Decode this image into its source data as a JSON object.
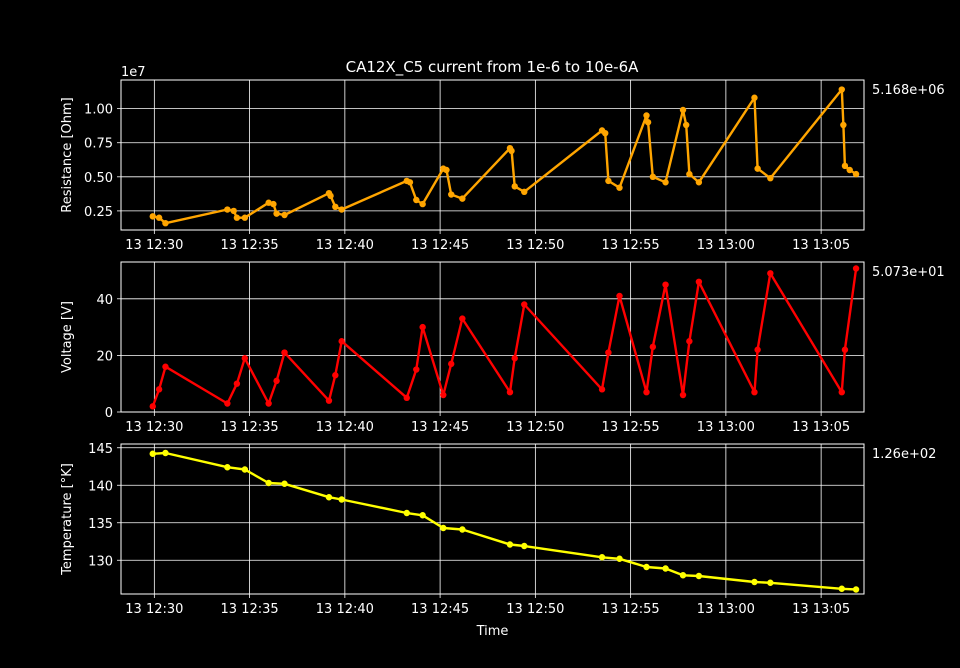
{
  "figure": {
    "title": "CA12X_C5 current from 1e-6 to 10e-6A",
    "background": "#000000",
    "foreground": "#ffffff",
    "grid": true
  },
  "chart_data": [
    {
      "type": "line",
      "ylabel": "Resistance [Ohm]",
      "scale_note": "1e7",
      "last_value": "5.168e+06",
      "color": "#ffa500",
      "xlabel": "",
      "x_ticks": [
        "13 12:30",
        "13 12:35",
        "13 12:40",
        "13 12:45",
        "13 12:50",
        "13 12:55",
        "13 13:00",
        "13 13:05"
      ],
      "y_ticks": [
        "0.25",
        "0.50",
        "0.75",
        "1.00"
      ],
      "y_tick_values": [
        0.25,
        0.5,
        0.75,
        1.0
      ],
      "ylim": [
        0.11,
        1.21
      ],
      "xlim": [
        "12:28:15",
        "13:07:15"
      ],
      "series": [
        {
          "x": [
            "12:29:55",
            "12:30:15",
            "12:30:35",
            "12:33:50",
            "12:34:10",
            "12:34:20",
            "12:34:45",
            "12:36:00",
            "12:36:15",
            "12:36:25",
            "12:36:50",
            "12:39:10",
            "12:39:15",
            "12:39:30",
            "12:39:50",
            "12:43:15",
            "12:43:25",
            "12:43:45",
            "12:44:05",
            "12:45:10",
            "12:45:20",
            "12:45:35",
            "12:46:10",
            "12:48:40",
            "12:48:45",
            "12:48:55",
            "12:49:25",
            "12:53:30",
            "12:53:40",
            "12:53:50",
            "12:54:25",
            "12:55:50",
            "12:55:55",
            "12:56:10",
            "12:56:50",
            "12:57:45",
            "12:57:55",
            "12:58:05",
            "12:58:35",
            "13:01:30",
            "13:01:40",
            "13:02:20",
            "13:06:05",
            "13:06:10",
            "13:06:15",
            "13:06:30",
            "13:06:50"
          ],
          "y": [
            0.21,
            0.2,
            0.16,
            0.26,
            0.25,
            0.2,
            0.2,
            0.31,
            0.3,
            0.23,
            0.22,
            0.38,
            0.36,
            0.28,
            0.26,
            0.47,
            0.46,
            0.33,
            0.3,
            0.56,
            0.55,
            0.37,
            0.34,
            0.71,
            0.69,
            0.43,
            0.39,
            0.84,
            0.82,
            0.47,
            0.42,
            0.95,
            0.9,
            0.5,
            0.46,
            0.99,
            0.88,
            0.52,
            0.46,
            1.08,
            0.56,
            0.49,
            1.14,
            0.88,
            0.58,
            0.55,
            0.52
          ]
        }
      ]
    },
    {
      "type": "line",
      "ylabel": "Voltage [V]",
      "last_value": "5.073e+01",
      "color": "#ff0000",
      "xlabel": "",
      "x_ticks": [
        "13 12:30",
        "13 12:35",
        "13 12:40",
        "13 12:45",
        "13 12:50",
        "13 12:55",
        "13 13:00",
        "13 13:05"
      ],
      "y_ticks": [
        "0",
        "20",
        "40"
      ],
      "y_tick_values": [
        0,
        20,
        40
      ],
      "ylim": [
        0,
        53
      ],
      "xlim": [
        "12:28:15",
        "13:07:15"
      ],
      "series": [
        {
          "x": [
            "12:29:55",
            "12:30:15",
            "12:30:35",
            "12:33:50",
            "12:34:20",
            "12:34:45",
            "12:36:00",
            "12:36:25",
            "12:36:50",
            "12:39:10",
            "12:39:30",
            "12:39:50",
            "12:43:15",
            "12:43:45",
            "12:44:05",
            "12:45:10",
            "12:45:35",
            "12:46:10",
            "12:48:40",
            "12:48:55",
            "12:49:25",
            "12:53:30",
            "12:53:50",
            "12:54:25",
            "12:55:50",
            "12:56:10",
            "12:56:50",
            "12:57:45",
            "12:58:05",
            "12:58:35",
            "13:01:30",
            "13:01:40",
            "13:02:20",
            "13:06:05",
            "13:06:15",
            "13:06:50"
          ],
          "y": [
            2,
            8,
            16,
            3,
            10,
            19,
            3,
            11,
            21,
            4,
            13,
            25,
            5,
            15,
            30,
            6,
            17,
            33,
            7,
            19,
            38,
            8,
            21,
            41,
            7,
            23,
            45,
            6,
            25,
            46,
            7,
            22,
            49,
            7,
            22,
            50.7
          ]
        }
      ]
    },
    {
      "type": "line",
      "ylabel": "Temperature [°K]",
      "xlabel": "Time",
      "last_value": "1.26e+02",
      "color": "#ffff00",
      "x_ticks": [
        "13 12:30",
        "13 12:35",
        "13 12:40",
        "13 12:45",
        "13 12:50",
        "13 12:55",
        "13 13:00",
        "13 13:05"
      ],
      "y_ticks": [
        "130",
        "135",
        "140",
        "145"
      ],
      "y_tick_values": [
        130,
        135,
        140,
        145
      ],
      "ylim": [
        125.5,
        145.5
      ],
      "xlim": [
        "12:28:15",
        "13:07:15"
      ],
      "series": [
        {
          "x": [
            "12:29:55",
            "12:30:35",
            "12:33:50",
            "12:34:45",
            "12:36:00",
            "12:36:50",
            "12:39:10",
            "12:39:50",
            "12:43:15",
            "12:44:05",
            "12:45:10",
            "12:46:10",
            "12:48:40",
            "12:49:25",
            "12:53:30",
            "12:54:25",
            "12:55:50",
            "12:56:50",
            "12:57:45",
            "12:58:35",
            "13:01:30",
            "13:02:20",
            "13:06:05",
            "13:06:50"
          ],
          "y": [
            144.2,
            144.3,
            142.4,
            142.1,
            140.3,
            140.2,
            138.4,
            138.1,
            136.3,
            136.0,
            134.3,
            134.1,
            132.1,
            131.9,
            130.4,
            130.2,
            129.1,
            128.9,
            128.0,
            127.9,
            127.1,
            127.0,
            126.2,
            126.1
          ]
        }
      ]
    }
  ]
}
